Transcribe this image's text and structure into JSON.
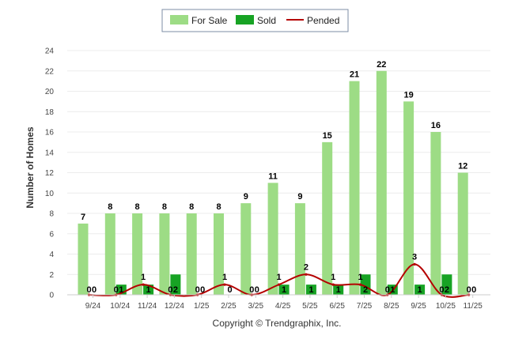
{
  "chart_data": {
    "type": "bar",
    "title": "",
    "xlabel": "",
    "ylabel": "Number of Homes",
    "ylim": [
      0,
      24
    ],
    "yticks": [
      0,
      2,
      4,
      6,
      8,
      10,
      12,
      14,
      16,
      18,
      20,
      22,
      24
    ],
    "grid": true,
    "legend_position": "top-center",
    "categories": [
      "9/24",
      "10/24",
      "11/24",
      "12/24",
      "1/25",
      "2/25",
      "3/25",
      "4/25",
      "5/25",
      "6/25",
      "7/25",
      "8/25",
      "9/25",
      "10/25",
      "11/25"
    ],
    "series": [
      {
        "name": "For Sale",
        "kind": "bar",
        "color": "#9ddc85",
        "values": [
          7,
          8,
          8,
          8,
          8,
          8,
          9,
          11,
          9,
          15,
          21,
          22,
          19,
          16,
          12
        ]
      },
      {
        "name": "Sold",
        "kind": "bar",
        "color": "#17a324",
        "values": [
          0,
          1,
          1,
          2,
          0,
          0,
          0,
          1,
          1,
          1,
          2,
          1,
          1,
          2,
          0
        ]
      },
      {
        "name": "Pended",
        "kind": "line",
        "color": "#b50000",
        "values": [
          0,
          0,
          1,
          0,
          0,
          1,
          0,
          1,
          2,
          1,
          1,
          0,
          3,
          0,
          0
        ]
      }
    ],
    "credit": "Copyright © Trendgraphix, Inc."
  }
}
